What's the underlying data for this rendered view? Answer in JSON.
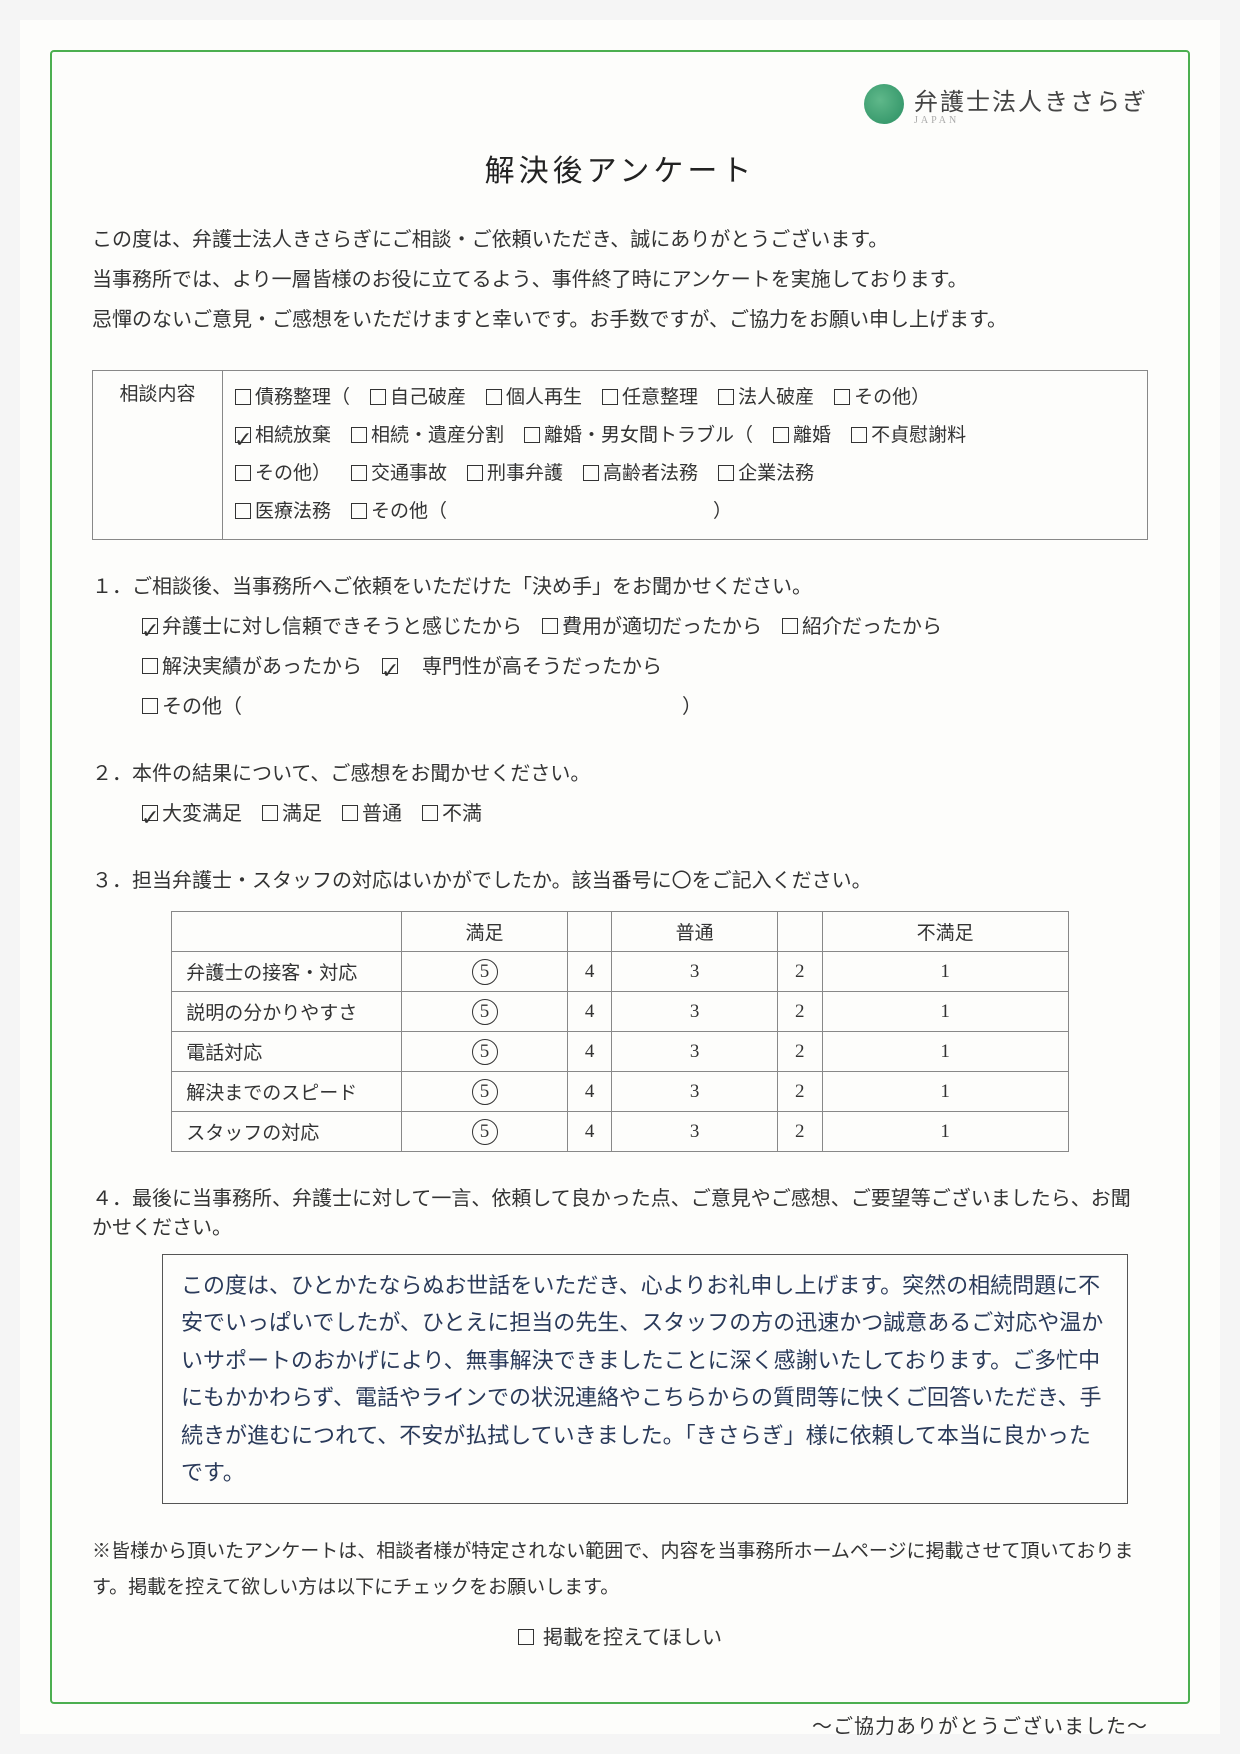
{
  "logo": {
    "name": "弁護士法人きさらぎ",
    "sub": "JAPAN"
  },
  "title": "解決後アンケート",
  "intro": [
    "この度は、弁護士法人きさらぎにご相談・ご依頼いただき、誠にありがとうございます。",
    "当事務所では、より一層皆様のお役に立てるよう、事件終了時にアンケートを実施しております。",
    "忌憚のないご意見・ご感想をいただけますと幸いです。お手数ですが、ご協力をお願い申し上げます。"
  ],
  "consult": {
    "label": "相談内容",
    "lines": [
      [
        {
          "label": "債務整理（",
          "checked": false
        },
        {
          "label": "自己破産",
          "checked": false
        },
        {
          "label": "個人再生",
          "checked": false
        },
        {
          "label": "任意整理",
          "checked": false
        },
        {
          "label": "法人破産",
          "checked": false
        },
        {
          "label": "その他）",
          "checked": false
        }
      ],
      [
        {
          "label": "相続放棄",
          "checked": true
        },
        {
          "label": "相続・遺産分割",
          "checked": false
        },
        {
          "label": "離婚・男女間トラブル（",
          "checked": false
        },
        {
          "label": "離婚",
          "checked": false
        },
        {
          "label": "不貞慰謝料",
          "checked": false
        }
      ],
      [
        {
          "label": "その他）",
          "checked": false
        },
        {
          "label": "交通事故",
          "checked": false
        },
        {
          "label": "刑事弁護",
          "checked": false
        },
        {
          "label": "高齢者法務",
          "checked": false
        },
        {
          "label": "企業法務",
          "checked": false
        }
      ],
      [
        {
          "label": "医療法務",
          "checked": false
        },
        {
          "label": "その他（　　　　　　　　　　　　　　）",
          "checked": false
        }
      ]
    ]
  },
  "q1": {
    "prompt": "１．ご相談後、当事務所へご依頼をいただけた「決め手」をお聞かせください。",
    "opts": [
      {
        "label": "弁護士に対し信頼できそうと感じたから",
        "checked": true
      },
      {
        "label": "費用が適切だったから",
        "checked": false
      },
      {
        "label": "紹介だったから",
        "checked": false
      },
      {
        "label": "解決実績があったから",
        "checked": false
      },
      {
        "label": "　専門性が高そうだったから",
        "checked": true
      },
      {
        "label": "その他（　　　　　　　　　　　　　　　　　　　　　　）",
        "checked": false
      }
    ]
  },
  "q2": {
    "prompt": "２．本件の結果について、ご感想をお聞かせください。",
    "opts": [
      {
        "label": "大変満足",
        "checked": true
      },
      {
        "label": "満足",
        "checked": false
      },
      {
        "label": "普通",
        "checked": false
      },
      {
        "label": "不満",
        "checked": false
      }
    ]
  },
  "q3": {
    "prompt": "３．担当弁護士・スタッフの対応はいかがでしたか。該当番号に〇をご記入ください。",
    "headers": [
      "",
      "満足",
      "",
      "普通",
      "",
      "不満足"
    ],
    "rows": [
      {
        "label": "弁護士の接客・対応",
        "vals": [
          5,
          4,
          3,
          2,
          1
        ],
        "circled": 5
      },
      {
        "label": "説明の分かりやすさ",
        "vals": [
          5,
          4,
          3,
          2,
          1
        ],
        "circled": 5
      },
      {
        "label": "電話対応",
        "vals": [
          5,
          4,
          3,
          2,
          1
        ],
        "circled": 5
      },
      {
        "label": "解決までのスピード",
        "vals": [
          5,
          4,
          3,
          2,
          1
        ],
        "circled": 5
      },
      {
        "label": "スタッフの対応",
        "vals": [
          5,
          4,
          3,
          2,
          1
        ],
        "circled": 5
      }
    ]
  },
  "q4": {
    "prompt": "４．最後に当事務所、弁護士に対して一言、依頼して良かった点、ご意見やご感想、ご要望等ございましたら、お聞かせください。",
    "comment": "この度は、ひとかたならぬお世話をいただき、心よりお礼申し上げます。突然の相続問題に不安でいっぱいでしたが、ひとえに担当の先生、スタッフの方の迅速かつ誠意あるご対応や温かいサポートのおかげにより、無事解決できましたことに深く感謝いたしております。ご多忙中にもかかわらず、電話やラインでの状況連絡やこちらからの質問等に快くご回答いただき、手続きが進むにつれて、不安が払拭していきました。「きさらぎ」様に依頼して本当に良かったです。"
  },
  "footer": {
    "note": "※皆様から頂いたアンケートは、相談者様が特定されない範囲で、内容を当事務所ホームページに掲載させて頂いております。掲載を控えて欲しい方は以下にチェックをお願いします。",
    "opt": {
      "label": "掲載を控えてほしい",
      "checked": false
    },
    "thanks": "～ご協力ありがとうございました～"
  }
}
